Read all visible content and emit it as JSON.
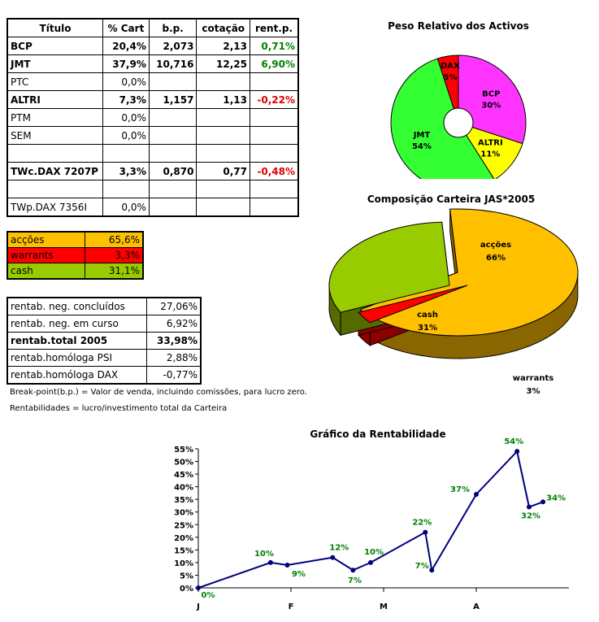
{
  "portfolio": {
    "headers": [
      "Título",
      "% Cart",
      "b.p.",
      "cotação",
      "rent.p."
    ],
    "rows": [
      {
        "name": "BCP",
        "pct": "20,4%",
        "bp": "2,073",
        "cot": "2,13",
        "rent": "0,71%",
        "bold": true,
        "sign": "pos"
      },
      {
        "name": "JMT",
        "pct": "37,9%",
        "bp": "10,716",
        "cot": "12,25",
        "rent": "6,90%",
        "bold": true,
        "sign": "pos"
      },
      {
        "name": "PTC",
        "pct": "0,0%",
        "bp": "",
        "cot": "",
        "rent": "",
        "bold": false,
        "sign": ""
      },
      {
        "name": "ALTRI",
        "pct": "7,3%",
        "bp": "1,157",
        "cot": "1,13",
        "rent": "-0,22%",
        "bold": true,
        "sign": "neg"
      },
      {
        "name": "PTM",
        "pct": "0,0%",
        "bp": "",
        "cot": "",
        "rent": "",
        "bold": false,
        "sign": ""
      },
      {
        "name": "SEM",
        "pct": "0,0%",
        "bp": "",
        "cot": "",
        "rent": "",
        "bold": false,
        "sign": ""
      },
      {
        "name": "",
        "pct": "",
        "bp": "",
        "cot": "",
        "rent": "",
        "bold": false,
        "sign": ""
      },
      {
        "name": "TWc.DAX 7207P",
        "pct": "3,3%",
        "bp": "0,870",
        "cot": "0,77",
        "rent": "-0,48%",
        "bold": true,
        "sign": "neg"
      },
      {
        "name": "",
        "pct": "",
        "bp": "",
        "cot": "",
        "rent": "",
        "bold": false,
        "sign": ""
      },
      {
        "name": "TWp.DAX 7356I",
        "pct": "0,0%",
        "bp": "",
        "cot": "",
        "rent": "",
        "bold": false,
        "sign": ""
      }
    ]
  },
  "allocation": [
    {
      "label": "acções",
      "value": "65,6%",
      "color": "#ffc000"
    },
    {
      "label": "warrants",
      "value": "3,3%",
      "color": "#ff0000"
    },
    {
      "label": "cash",
      "value": "31,1%",
      "color": "#99cc00"
    }
  ],
  "returns": [
    {
      "label": "rentab. neg. concluídos",
      "value": "27,06%",
      "bold": false
    },
    {
      "label": "rentab. neg. em curso",
      "value": "6,92%",
      "bold": false
    },
    {
      "label": "rentab.total 2005",
      "value": "33,98%",
      "bold": true
    },
    {
      "label": "rentab.homóloga PSI",
      "value": "2,88%",
      "bold": false
    },
    {
      "label": "rentab.homóloga DAX",
      "value": "-0,77%",
      "bold": false
    }
  ],
  "notes": {
    "breakpoint": "Break-point(b.p.) = Valor de venda, incluindo comissões, para lucro zero.",
    "returns_def": "Rentabilidades = lucro/investimento total da Carteira"
  },
  "chart_data": [
    {
      "type": "pie",
      "title": "Peso Relativo dos Activos",
      "categories": [
        "BCP",
        "ALTRI",
        "JMT",
        "DAX"
      ],
      "values": [
        30,
        11,
        54,
        5
      ],
      "labels": [
        "30%",
        "11%",
        "54%",
        "5%"
      ],
      "colors": [
        "#ff33ff",
        "#ffff00",
        "#33ff33",
        "#ff0000"
      ]
    },
    {
      "type": "pie",
      "title": "Composição Carteira JAS*2005",
      "categories": [
        "acções",
        "warrants",
        "cash"
      ],
      "values": [
        66,
        3,
        31
      ],
      "labels": [
        "66%",
        "3%",
        "31%"
      ],
      "colors": [
        "#ffc000",
        "#ff0000",
        "#99cc00"
      ]
    },
    {
      "type": "line",
      "title": "Gráfico da Rentabilidade",
      "x": [
        0,
        0.78,
        0.96,
        1.45,
        1.67,
        1.86,
        2.45,
        2.52,
        3.0,
        3.44,
        3.57,
        3.72
      ],
      "values": [
        0,
        10,
        9,
        12,
        7,
        10,
        22,
        7,
        37,
        54,
        32,
        34
      ],
      "point_labels": [
        "0%",
        "10%",
        "9%",
        "12%",
        "7%",
        "10%",
        "22%",
        "7%",
        "37%",
        "54%",
        "32%",
        "34%"
      ],
      "labeled_points": [
        0,
        1,
        2,
        3,
        4,
        5,
        6,
        7,
        8,
        9,
        10,
        11
      ],
      "xticks": [
        "J",
        "F",
        "M",
        "A"
      ],
      "yticks": [
        "0%",
        "5%",
        "10%",
        "15%",
        "20%",
        "25%",
        "30%",
        "35%",
        "40%",
        "45%",
        "50%",
        "55%"
      ],
      "ylim": [
        0,
        55
      ],
      "xlim": [
        0,
        4
      ],
      "color": "#000080"
    }
  ]
}
